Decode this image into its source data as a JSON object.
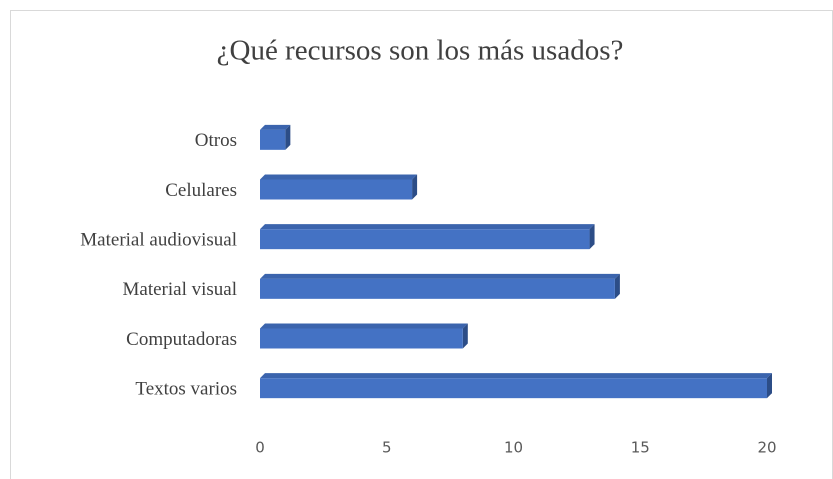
{
  "chart_data": {
    "type": "bar3d-horizontal",
    "title": "¿Qué recursos son los más usados?",
    "categories": [
      "Textos varios",
      "Computadoras",
      "Material visual",
      "Material audiovisual",
      "Celulares",
      "Otros"
    ],
    "values": [
      20,
      8,
      14,
      13,
      6,
      1
    ],
    "color": "#4472c4",
    "xlim": [
      0,
      20
    ],
    "xticks": [
      0,
      5,
      10,
      15,
      20
    ],
    "grid": false
  }
}
